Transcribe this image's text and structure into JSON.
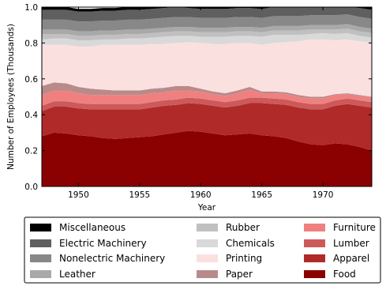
{
  "chart_data": {
    "type": "area",
    "stacked": true,
    "x": [
      1947,
      1948,
      1949,
      1950,
      1951,
      1952,
      1953,
      1954,
      1955,
      1956,
      1957,
      1958,
      1959,
      1960,
      1961,
      1962,
      1963,
      1964,
      1965,
      1966,
      1967,
      1968,
      1969,
      1970,
      1971,
      1972,
      1973,
      1974
    ],
    "xticks": [
      1950,
      1955,
      1960,
      1965,
      1970
    ],
    "xlim": [
      1947,
      1974
    ],
    "ylim": [
      0.0,
      1.0
    ],
    "yticks": [
      "0.0",
      "0.2",
      "0.4",
      "0.6",
      "0.8",
      "1.0"
    ],
    "xlabel": "Year",
    "ylabel": "Number of Employees (Thousands)",
    "legend_position": "bottom",
    "series": [
      {
        "name": "Food",
        "color": "#8b0000",
        "values": [
          0.28,
          0.3,
          0.295,
          0.285,
          0.28,
          0.27,
          0.265,
          0.27,
          0.275,
          0.28,
          0.29,
          0.3,
          0.31,
          0.305,
          0.295,
          0.285,
          0.29,
          0.295,
          0.285,
          0.28,
          0.27,
          0.25,
          0.235,
          0.23,
          0.24,
          0.235,
          0.22,
          0.2
        ]
      },
      {
        "name": "Apparel",
        "color": "#b02a2a",
        "values": [
          0.14,
          0.145,
          0.15,
          0.15,
          0.15,
          0.16,
          0.165,
          0.16,
          0.155,
          0.16,
          0.16,
          0.155,
          0.155,
          0.155,
          0.155,
          0.155,
          0.16,
          0.17,
          0.18,
          0.18,
          0.185,
          0.19,
          0.195,
          0.2,
          0.21,
          0.225,
          0.23,
          0.24
        ]
      },
      {
        "name": "Lumber",
        "color": "#cc5a5a",
        "values": [
          0.03,
          0.03,
          0.03,
          0.03,
          0.03,
          0.03,
          0.03,
          0.03,
          0.03,
          0.03,
          0.03,
          0.03,
          0.03,
          0.03,
          0.03,
          0.03,
          0.03,
          0.03,
          0.03,
          0.03,
          0.03,
          0.03,
          0.03,
          0.03,
          0.03,
          0.03,
          0.03,
          0.03
        ]
      },
      {
        "name": "Furniture",
        "color": "#f08080",
        "values": [
          0.06,
          0.06,
          0.06,
          0.055,
          0.05,
          0.05,
          0.05,
          0.05,
          0.05,
          0.05,
          0.045,
          0.05,
          0.04,
          0.04,
          0.035,
          0.035,
          0.04,
          0.045,
          0.025,
          0.03,
          0.03,
          0.03,
          0.03,
          0.03,
          0.03,
          0.025,
          0.025,
          0.025
        ]
      },
      {
        "name": "Paper",
        "color": "#b98a8a",
        "values": [
          0.05,
          0.045,
          0.04,
          0.035,
          0.035,
          0.03,
          0.025,
          0.025,
          0.025,
          0.025,
          0.025,
          0.025,
          0.025,
          0.015,
          0.015,
          0.015,
          0.015,
          0.015,
          0.01,
          0.01,
          0.01,
          0.01,
          0.01,
          0.01,
          0.005,
          0.005,
          0.005,
          0.005
        ]
      },
      {
        "name": "Printing",
        "color": "#fbe0e0",
        "values": [
          0.23,
          0.21,
          0.215,
          0.225,
          0.235,
          0.25,
          0.255,
          0.255,
          0.255,
          0.25,
          0.245,
          0.24,
          0.245,
          0.255,
          0.265,
          0.275,
          0.265,
          0.245,
          0.26,
          0.27,
          0.28,
          0.3,
          0.32,
          0.32,
          0.3,
          0.3,
          0.3,
          0.3
        ]
      },
      {
        "name": "Chemicals",
        "color": "#d9d9d9",
        "values": [
          0.03,
          0.035,
          0.035,
          0.035,
          0.035,
          0.03,
          0.03,
          0.035,
          0.035,
          0.035,
          0.04,
          0.04,
          0.035,
          0.035,
          0.04,
          0.04,
          0.04,
          0.04,
          0.045,
          0.045,
          0.04,
          0.035,
          0.03,
          0.035,
          0.035,
          0.035,
          0.03,
          0.03
        ]
      },
      {
        "name": "Rubber",
        "color": "#c0c0c0",
        "values": [
          0.03,
          0.025,
          0.025,
          0.025,
          0.025,
          0.025,
          0.025,
          0.025,
          0.025,
          0.025,
          0.025,
          0.025,
          0.025,
          0.025,
          0.025,
          0.025,
          0.025,
          0.025,
          0.025,
          0.025,
          0.025,
          0.025,
          0.025,
          0.02,
          0.025,
          0.025,
          0.025,
          0.025
        ]
      },
      {
        "name": "Leather",
        "color": "#a9a9a9",
        "values": [
          0.025,
          0.025,
          0.025,
          0.025,
          0.025,
          0.025,
          0.025,
          0.025,
          0.025,
          0.025,
          0.025,
          0.025,
          0.025,
          0.025,
          0.025,
          0.025,
          0.025,
          0.025,
          0.025,
          0.025,
          0.025,
          0.025,
          0.025,
          0.025,
          0.025,
          0.025,
          0.025,
          0.025
        ]
      },
      {
        "name": "Nonelectric Machinery",
        "color": "#888888",
        "values": [
          0.055,
          0.055,
          0.055,
          0.055,
          0.055,
          0.055,
          0.055,
          0.055,
          0.055,
          0.055,
          0.055,
          0.055,
          0.055,
          0.055,
          0.055,
          0.055,
          0.055,
          0.055,
          0.055,
          0.055,
          0.055,
          0.055,
          0.055,
          0.055,
          0.055,
          0.055,
          0.055,
          0.055
        ]
      },
      {
        "name": "Electric Machinery",
        "color": "#5f5f5f",
        "values": [
          0.055,
          0.055,
          0.055,
          0.055,
          0.055,
          0.055,
          0.055,
          0.055,
          0.055,
          0.055,
          0.055,
          0.055,
          0.05,
          0.05,
          0.05,
          0.05,
          0.05,
          0.05,
          0.05,
          0.05,
          0.05,
          0.05,
          0.05,
          0.05,
          0.05,
          0.05,
          0.05,
          0.05
        ]
      },
      {
        "name": "Miscellaneous",
        "color": "#000000",
        "values": [
          0.015,
          0.015,
          0.015,
          0.015,
          0.015,
          0.015,
          0.015,
          0.015,
          0.015,
          0.015,
          0.015,
          0.015,
          0.015,
          0.015,
          0.015,
          0.015,
          0.015,
          0.015,
          0.015,
          0.015,
          0.015,
          0.015,
          0.015,
          0.015,
          0.015,
          0.015,
          0.015,
          0.015
        ]
      }
    ],
    "legend_order": [
      "Miscellaneous",
      "Rubber",
      "Furniture",
      "Electric Machinery",
      "Chemicals",
      "Lumber",
      "Nonelectric Machinery",
      "Printing",
      "Apparel",
      "Leather",
      "Paper",
      "Food"
    ]
  }
}
